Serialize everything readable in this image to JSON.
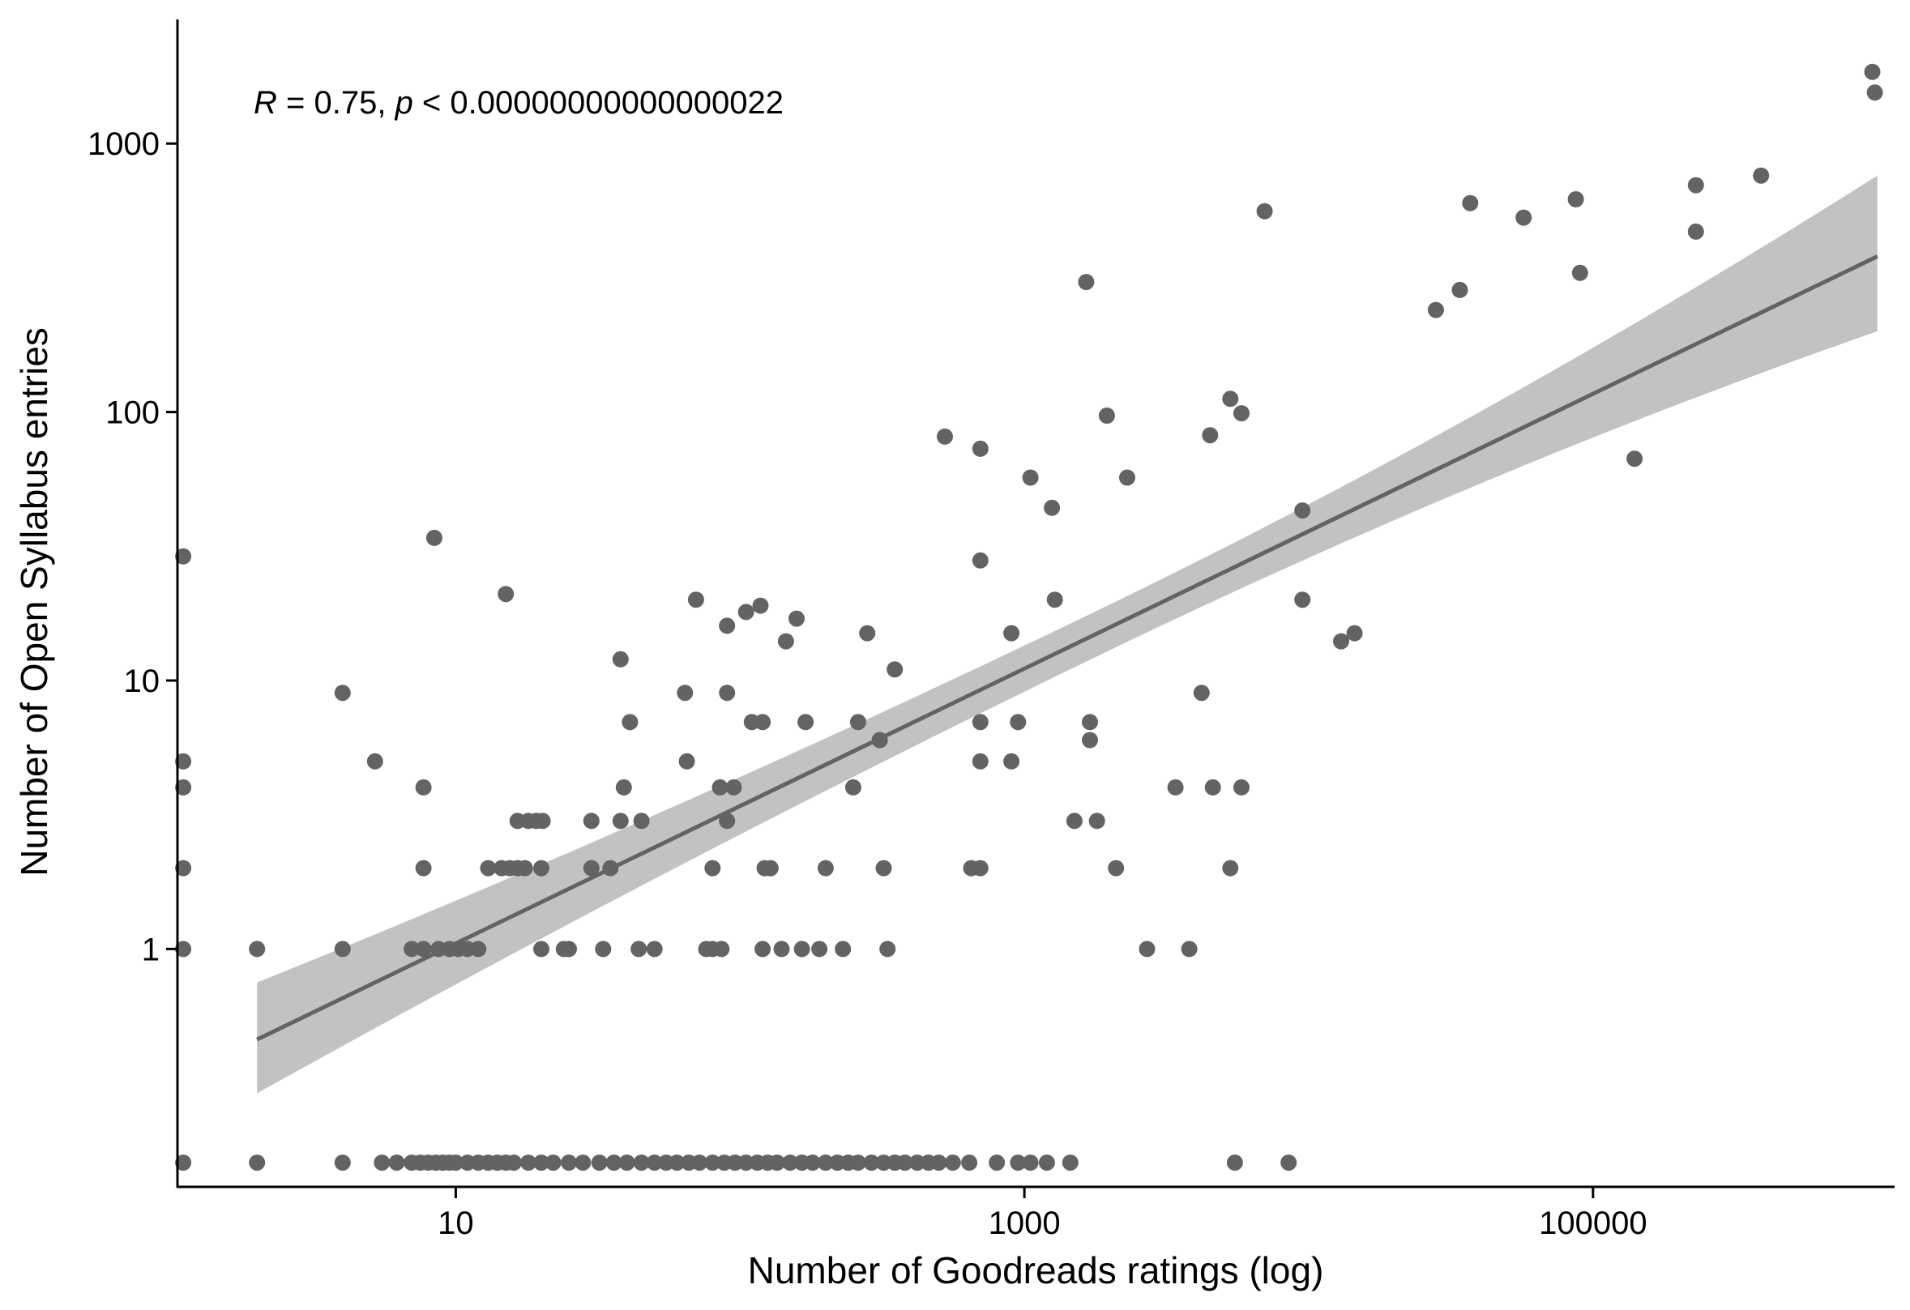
{
  "chart_data": {
    "type": "scatter",
    "xlabel": "Number of Goodreads ratings (log)",
    "ylabel": "Number of Open Syllabus entries",
    "x_scale": "log10",
    "y_scale": "log10",
    "xlim": [
      1.05,
      1150000
    ],
    "ylim": [
      0.13,
      2900
    ],
    "x_ticks": [
      10,
      1000,
      100000
    ],
    "x_tick_labels": [
      "10",
      "1000",
      "100000"
    ],
    "y_ticks": [
      1,
      10,
      100,
      1000
    ],
    "y_tick_labels": [
      "1",
      "10",
      "100",
      "1000"
    ],
    "grid": false,
    "legend": "none",
    "annotation": {
      "r_symbol": "R",
      "r_text": " = 0.75, ",
      "p_symbol": "p",
      "p_text": " < 0.00000000000000022"
    },
    "colors": {
      "points": "#636363",
      "fit_line": "#636363",
      "confidence_band": "#c2c2c2",
      "axis": "#000000"
    },
    "fit": {
      "x": [
        2,
        1000000
      ],
      "y": [
        0.46,
        380
      ],
      "ci_lower": [
        0.29,
        200
      ],
      "ci_upper": [
        0.75,
        760
      ]
    },
    "points": [
      {
        "x": 1.1,
        "y": 0.16
      },
      {
        "x": 2,
        "y": 0.16
      },
      {
        "x": 4,
        "y": 0.16
      },
      {
        "x": 5.5,
        "y": 0.16
      },
      {
        "x": 6.2,
        "y": 0.16
      },
      {
        "x": 7,
        "y": 0.16
      },
      {
        "x": 7.5,
        "y": 0.16
      },
      {
        "x": 8,
        "y": 0.16
      },
      {
        "x": 8.5,
        "y": 0.16
      },
      {
        "x": 9,
        "y": 0.16
      },
      {
        "x": 9.5,
        "y": 0.16
      },
      {
        "x": 10,
        "y": 0.16
      },
      {
        "x": 11,
        "y": 0.16
      },
      {
        "x": 12,
        "y": 0.16
      },
      {
        "x": 13,
        "y": 0.16
      },
      {
        "x": 14,
        "y": 0.16
      },
      {
        "x": 15,
        "y": 0.16
      },
      {
        "x": 16,
        "y": 0.16
      },
      {
        "x": 18,
        "y": 0.16
      },
      {
        "x": 20,
        "y": 0.16
      },
      {
        "x": 22,
        "y": 0.16
      },
      {
        "x": 25,
        "y": 0.16
      },
      {
        "x": 28,
        "y": 0.16
      },
      {
        "x": 32,
        "y": 0.16
      },
      {
        "x": 36,
        "y": 0.16
      },
      {
        "x": 40,
        "y": 0.16
      },
      {
        "x": 45,
        "y": 0.16
      },
      {
        "x": 50,
        "y": 0.16
      },
      {
        "x": 55,
        "y": 0.16
      },
      {
        "x": 60,
        "y": 0.16
      },
      {
        "x": 66,
        "y": 0.16
      },
      {
        "x": 72,
        "y": 0.16
      },
      {
        "x": 80,
        "y": 0.16
      },
      {
        "x": 88,
        "y": 0.16
      },
      {
        "x": 96,
        "y": 0.16
      },
      {
        "x": 105,
        "y": 0.16
      },
      {
        "x": 115,
        "y": 0.16
      },
      {
        "x": 125,
        "y": 0.16
      },
      {
        "x": 135,
        "y": 0.16
      },
      {
        "x": 150,
        "y": 0.16
      },
      {
        "x": 165,
        "y": 0.16
      },
      {
        "x": 180,
        "y": 0.16
      },
      {
        "x": 200,
        "y": 0.16
      },
      {
        "x": 220,
        "y": 0.16
      },
      {
        "x": 240,
        "y": 0.16
      },
      {
        "x": 260,
        "y": 0.16
      },
      {
        "x": 290,
        "y": 0.16
      },
      {
        "x": 320,
        "y": 0.16
      },
      {
        "x": 350,
        "y": 0.16
      },
      {
        "x": 380,
        "y": 0.16
      },
      {
        "x": 420,
        "y": 0.16
      },
      {
        "x": 460,
        "y": 0.16
      },
      {
        "x": 500,
        "y": 0.16
      },
      {
        "x": 560,
        "y": 0.16
      },
      {
        "x": 640,
        "y": 0.16
      },
      {
        "x": 800,
        "y": 0.16
      },
      {
        "x": 950,
        "y": 0.16
      },
      {
        "x": 1050,
        "y": 0.16
      },
      {
        "x": 1200,
        "y": 0.16
      },
      {
        "x": 1450,
        "y": 0.16
      },
      {
        "x": 5500,
        "y": 0.16
      },
      {
        "x": 8500,
        "y": 0.16
      },
      {
        "x": 2,
        "y": 1
      },
      {
        "x": 4,
        "y": 1
      },
      {
        "x": 7,
        "y": 1
      },
      {
        "x": 7.7,
        "y": 1
      },
      {
        "x": 8.7,
        "y": 1
      },
      {
        "x": 9.5,
        "y": 1
      },
      {
        "x": 10.2,
        "y": 1
      },
      {
        "x": 11,
        "y": 1
      },
      {
        "x": 12,
        "y": 1
      },
      {
        "x": 20,
        "y": 1
      },
      {
        "x": 24,
        "y": 1
      },
      {
        "x": 25,
        "y": 1
      },
      {
        "x": 33,
        "y": 1
      },
      {
        "x": 44,
        "y": 1
      },
      {
        "x": 50,
        "y": 1
      },
      {
        "x": 76,
        "y": 1
      },
      {
        "x": 80,
        "y": 1
      },
      {
        "x": 86,
        "y": 1
      },
      {
        "x": 120,
        "y": 1
      },
      {
        "x": 140,
        "y": 1
      },
      {
        "x": 165,
        "y": 1
      },
      {
        "x": 190,
        "y": 1
      },
      {
        "x": 230,
        "y": 1
      },
      {
        "x": 330,
        "y": 1
      },
      {
        "x": 2700,
        "y": 1
      },
      {
        "x": 3800,
        "y": 1
      },
      {
        "x": 7.7,
        "y": 2
      },
      {
        "x": 13,
        "y": 2
      },
      {
        "x": 14.5,
        "y": 2
      },
      {
        "x": 15.5,
        "y": 2
      },
      {
        "x": 16.5,
        "y": 2
      },
      {
        "x": 17.5,
        "y": 2
      },
      {
        "x": 20,
        "y": 2
      },
      {
        "x": 30,
        "y": 2
      },
      {
        "x": 35,
        "y": 2
      },
      {
        "x": 80,
        "y": 2
      },
      {
        "x": 122,
        "y": 2
      },
      {
        "x": 128,
        "y": 2
      },
      {
        "x": 200,
        "y": 2
      },
      {
        "x": 320,
        "y": 2
      },
      {
        "x": 650,
        "y": 2
      },
      {
        "x": 700,
        "y": 2
      },
      {
        "x": 2100,
        "y": 2
      },
      {
        "x": 5300,
        "y": 2
      },
      {
        "x": 16.5,
        "y": 3
      },
      {
        "x": 18,
        "y": 3
      },
      {
        "x": 19.2,
        "y": 3
      },
      {
        "x": 20.2,
        "y": 3
      },
      {
        "x": 30,
        "y": 3
      },
      {
        "x": 38,
        "y": 3
      },
      {
        "x": 45,
        "y": 3
      },
      {
        "x": 90,
        "y": 3
      },
      {
        "x": 1500,
        "y": 3
      },
      {
        "x": 1800,
        "y": 3
      },
      {
        "x": 7.7,
        "y": 4
      },
      {
        "x": 39,
        "y": 4
      },
      {
        "x": 85,
        "y": 4
      },
      {
        "x": 95,
        "y": 4
      },
      {
        "x": 250,
        "y": 4
      },
      {
        "x": 3400,
        "y": 4
      },
      {
        "x": 4600,
        "y": 4
      },
      {
        "x": 5800,
        "y": 4
      },
      {
        "x": 5.2,
        "y": 5
      },
      {
        "x": 65,
        "y": 5
      },
      {
        "x": 700,
        "y": 5
      },
      {
        "x": 900,
        "y": 5
      },
      {
        "x": 1.1,
        "y": 5
      },
      {
        "x": 1.1,
        "y": 4
      },
      {
        "x": 1.1,
        "y": 2
      },
      {
        "x": 1.1,
        "y": 1
      },
      {
        "x": 1.1,
        "y": 29
      },
      {
        "x": 1700,
        "y": 6
      },
      {
        "x": 310,
        "y": 6
      },
      {
        "x": 41,
        "y": 7
      },
      {
        "x": 110,
        "y": 7
      },
      {
        "x": 120,
        "y": 7
      },
      {
        "x": 170,
        "y": 7
      },
      {
        "x": 260,
        "y": 7
      },
      {
        "x": 700,
        "y": 7
      },
      {
        "x": 950,
        "y": 7
      },
      {
        "x": 1700,
        "y": 7
      },
      {
        "x": 4,
        "y": 9
      },
      {
        "x": 64,
        "y": 9
      },
      {
        "x": 90,
        "y": 9
      },
      {
        "x": 4200,
        "y": 9
      },
      {
        "x": 350,
        "y": 11
      },
      {
        "x": 38,
        "y": 12
      },
      {
        "x": 145,
        "y": 14
      },
      {
        "x": 13000,
        "y": 14
      },
      {
        "x": 14500,
        "y": 15
      },
      {
        "x": 900,
        "y": 15
      },
      {
        "x": 280,
        "y": 15
      },
      {
        "x": 90,
        "y": 16
      },
      {
        "x": 158,
        "y": 17
      },
      {
        "x": 105,
        "y": 18
      },
      {
        "x": 118,
        "y": 19
      },
      {
        "x": 70,
        "y": 20
      },
      {
        "x": 1280,
        "y": 20
      },
      {
        "x": 9500,
        "y": 20
      },
      {
        "x": 15,
        "y": 21
      },
      {
        "x": 8.4,
        "y": 34
      },
      {
        "x": 700,
        "y": 28
      },
      {
        "x": 9500,
        "y": 43
      },
      {
        "x": 1250,
        "y": 44
      },
      {
        "x": 1050,
        "y": 57
      },
      {
        "x": 2300,
        "y": 57
      },
      {
        "x": 700,
        "y": 73
      },
      {
        "x": 525,
        "y": 81
      },
      {
        "x": 4500,
        "y": 82
      },
      {
        "x": 1950,
        "y": 97
      },
      {
        "x": 5800,
        "y": 99
      },
      {
        "x": 5300,
        "y": 112
      },
      {
        "x": 140000,
        "y": 67
      },
      {
        "x": 28000,
        "y": 240
      },
      {
        "x": 34000,
        "y": 285
      },
      {
        "x": 1650,
        "y": 305
      },
      {
        "x": 90000,
        "y": 330
      },
      {
        "x": 230000,
        "y": 470
      },
      {
        "x": 57000,
        "y": 530
      },
      {
        "x": 7000,
        "y": 560
      },
      {
        "x": 37000,
        "y": 600
      },
      {
        "x": 87000,
        "y": 620
      },
      {
        "x": 230000,
        "y": 700
      },
      {
        "x": 390000,
        "y": 760
      },
      {
        "x": 980000,
        "y": 1550
      },
      {
        "x": 960000,
        "y": 1850
      }
    ]
  }
}
